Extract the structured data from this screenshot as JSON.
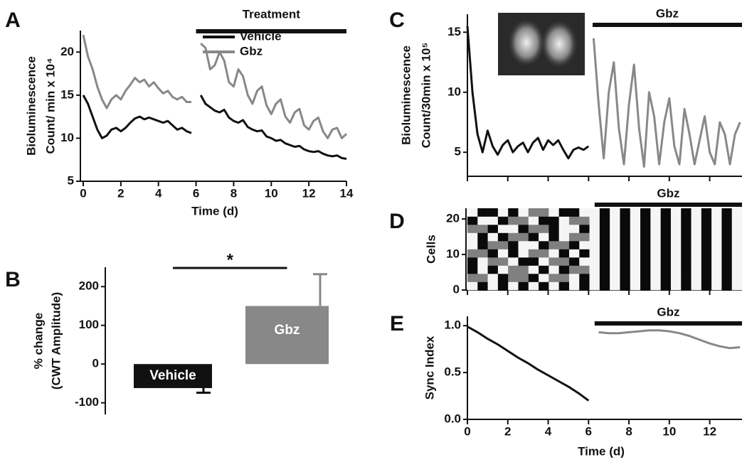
{
  "chart_data": [
    {
      "type": "line",
      "panel": "A",
      "ylabel": [
        "Bioluminescence",
        "Count/ min x 10⁴"
      ],
      "xlabel": "Time (d)",
      "x": [
        0,
        0.25,
        0.5,
        0.75,
        1,
        1.25,
        1.5,
        1.75,
        2,
        2.25,
        2.5,
        2.75,
        3,
        3.25,
        3.5,
        3.75,
        4,
        4.25,
        4.5,
        4.75,
        5,
        5.25,
        5.5,
        5.75,
        6,
        6.25,
        6.5,
        6.75,
        7,
        7.25,
        7.5,
        7.75,
        8,
        8.25,
        8.5,
        8.75,
        9,
        9.25,
        9.5,
        9.75,
        10,
        10.25,
        10.5,
        10.75,
        11,
        11.25,
        11.5,
        11.75,
        12,
        12.25,
        12.5,
        12.75,
        13,
        13.25,
        13.5,
        13.75,
        14
      ],
      "series": [
        {
          "name": "Vehicle",
          "color": "#111111",
          "values": [
            15,
            14,
            12.5,
            11,
            10,
            10.3,
            11,
            11.2,
            10.8,
            11.2,
            11.8,
            12.3,
            12.5,
            12.2,
            12.4,
            12.2,
            12,
            11.8,
            12,
            11.5,
            11,
            11.2,
            10.8,
            10.6,
            null,
            15,
            14,
            13.6,
            13.2,
            13,
            13.3,
            12.4,
            12,
            11.8,
            12.1,
            11.3,
            11,
            10.8,
            10.9,
            10.2,
            10,
            9.7,
            9.8,
            9.4,
            9.2,
            9,
            9.1,
            8.7,
            8.5,
            8.4,
            8.5,
            8.2,
            8,
            7.9,
            8,
            7.7,
            7.6
          ]
        },
        {
          "name": "Gbz",
          "color": "#888888",
          "values": [
            22,
            19.5,
            18,
            16,
            14.5,
            13.5,
            14.5,
            15,
            14.5,
            15.5,
            16.2,
            17,
            16.5,
            16.8,
            16,
            16.5,
            15.8,
            15.2,
            15.5,
            14.8,
            14.5,
            14.8,
            14.2,
            14.2,
            null,
            21,
            20.5,
            18,
            18.5,
            20,
            19,
            16.5,
            16,
            18,
            17.2,
            15,
            14,
            15.5,
            16,
            13.8,
            12.8,
            14,
            14.5,
            12.5,
            11.8,
            13,
            13.4,
            11.5,
            11,
            12,
            12.4,
            10.8,
            10,
            11,
            11.2,
            10,
            10.5
          ]
        }
      ],
      "xlim": [
        0,
        14
      ],
      "xticks": [
        0,
        2,
        4,
        6,
        8,
        10,
        12,
        14
      ],
      "ylim": [
        5,
        22.5
      ],
      "yticks": [
        5,
        10,
        15,
        20
      ],
      "annotations": [
        {
          "text": "Treatment",
          "span": [
            6,
            14
          ]
        }
      ]
    },
    {
      "type": "bar",
      "panel": "B",
      "ylabel": [
        "% change",
        "(CWT Amplitude)"
      ],
      "categories": [
        "Vehicle",
        "Gbz"
      ],
      "values": [
        -62,
        150
      ],
      "errors": [
        12,
        82
      ],
      "colors": [
        "#111111",
        "#888888"
      ],
      "ylim": [
        -130,
        250
      ],
      "yticks": [
        -100,
        0,
        100,
        200
      ],
      "significance": "*"
    },
    {
      "type": "line",
      "panel": "C",
      "ylabel": [
        "Bioluminescence",
        "Count/30min x 10⁵"
      ],
      "x": [
        0,
        0.25,
        0.5,
        0.75,
        1,
        1.25,
        1.5,
        1.75,
        2,
        2.25,
        2.5,
        2.75,
        3,
        3.25,
        3.5,
        3.75,
        4,
        4.25,
        4.5,
        4.75,
        5,
        5.25,
        5.5,
        5.75,
        6,
        6.25,
        6.5,
        6.75,
        7,
        7.25,
        7.5,
        7.75,
        8,
        8.25,
        8.5,
        8.75,
        9,
        9.25,
        9.5,
        9.75,
        10,
        10.25,
        10.5,
        10.75,
        11,
        11.25,
        11.5,
        11.75,
        12,
        12.25,
        12.5,
        12.75,
        13,
        13.25,
        13.5
      ],
      "series": [
        {
          "color": "#111111",
          "values": [
            15.5,
            10,
            6.5,
            5,
            6.8,
            5.5,
            4.8,
            5.6,
            6,
            5,
            5.5,
            5.8,
            5,
            5.8,
            6.2,
            5.2,
            6,
            5.6,
            6,
            5.2,
            4.5,
            5.2,
            5.4,
            5.2,
            5.5,
            null,
            null,
            null,
            null,
            null,
            null,
            null,
            null,
            null,
            null,
            null,
            null,
            null,
            null,
            null,
            null,
            null,
            null,
            null,
            null,
            null,
            null,
            null,
            null,
            null,
            null,
            null,
            null,
            null,
            null
          ]
        },
        {
          "color": "#888888",
          "values": [
            null,
            null,
            null,
            null,
            null,
            null,
            null,
            null,
            null,
            null,
            null,
            null,
            null,
            null,
            null,
            null,
            null,
            null,
            null,
            null,
            null,
            null,
            null,
            null,
            null,
            14.5,
            9,
            4.5,
            10,
            12.5,
            7,
            4,
            9,
            12.3,
            7,
            3.8,
            10,
            8,
            4,
            7.5,
            9.5,
            5.5,
            4,
            8.6,
            6.5,
            4,
            6,
            8,
            5,
            4,
            7.5,
            6.5,
            4,
            6.5,
            7.5
          ]
        }
      ],
      "xlim": [
        0,
        13.6
      ],
      "ylim": [
        3,
        16.5
      ],
      "yticks": [
        5,
        10,
        15
      ],
      "annotations": [
        {
          "text": "Gbz",
          "span": [
            6.2,
            13.6
          ]
        }
      ]
    },
    {
      "type": "heatmap",
      "panel": "D",
      "ylabel": "Cells",
      "z": [
        [
          1,
          0,
          1,
          0,
          1,
          0,
          1,
          0,
          1,
          0,
          1,
          0,
          1,
          0,
          1,
          0,
          1,
          0,
          1,
          0,
          1,
          0,
          1,
          0,
          1,
          0,
          1
        ],
        [
          0.5,
          0.5,
          1,
          0,
          0.5,
          0.5,
          0,
          1,
          0.5,
          0.5,
          1,
          0,
          1,
          0,
          1,
          0,
          1,
          0,
          1,
          0,
          1,
          0,
          1,
          0,
          1,
          0,
          1
        ],
        [
          0,
          1,
          0,
          1,
          0.5,
          0.5,
          1,
          0,
          1,
          0,
          0.5,
          0.5,
          1,
          0,
          1,
          0,
          1,
          0,
          1,
          0,
          1,
          0,
          1,
          0,
          1,
          0,
          1
        ],
        [
          0,
          1,
          0.5,
          0.5,
          1,
          0,
          0,
          1,
          0.5,
          0.5,
          0,
          1,
          1,
          0,
          1,
          0,
          1,
          0,
          1,
          0,
          1,
          0,
          1,
          0,
          1,
          0,
          1
        ],
        [
          0.5,
          0.5,
          0,
          1,
          0,
          1,
          0.5,
          0.5,
          1,
          0,
          1,
          0,
          1,
          0,
          1,
          0,
          1,
          0,
          1,
          0,
          1,
          0,
          1,
          0,
          1,
          0,
          1
        ],
        [
          1,
          0,
          0.5,
          0.5,
          0,
          1,
          1,
          0,
          0.5,
          0.5,
          0,
          1,
          1,
          0,
          1,
          0,
          1,
          0,
          1,
          0,
          1,
          0,
          1,
          0,
          1,
          0,
          1
        ],
        [
          1,
          0,
          1,
          0,
          0.5,
          0.5,
          0,
          1,
          0,
          1,
          0.5,
          0.5,
          1,
          0,
          1,
          0,
          1,
          0,
          1,
          0,
          1,
          0,
          1,
          0,
          1,
          0,
          1
        ],
        [
          0.5,
          0.5,
          0,
          1,
          1,
          0,
          0.5,
          0.5,
          0,
          1,
          1,
          0,
          1,
          0,
          1,
          0,
          1,
          0,
          1,
          0,
          1,
          0,
          1,
          0,
          1,
          0,
          1
        ],
        [
          0,
          1,
          1,
          0,
          0.5,
          0.5,
          1,
          0,
          0,
          1,
          0.5,
          0.5,
          1,
          0,
          1,
          0,
          1,
          0,
          1,
          0,
          1,
          0,
          1,
          0,
          1,
          0,
          1
        ],
        [
          1,
          0,
          0,
          1,
          0,
          1,
          0.5,
          0.5,
          1,
          0,
          0,
          1,
          1,
          0,
          1,
          0,
          1,
          0,
          1,
          0,
          1,
          0,
          1,
          0,
          1,
          0,
          1
        ]
      ],
      "xlim": [
        0,
        13.6
      ],
      "ylim": [
        0,
        23
      ],
      "yticks": [
        0,
        10,
        20
      ],
      "annotations": [
        {
          "text": "Gbz",
          "span": [
            6.3,
            13.6
          ]
        }
      ]
    },
    {
      "type": "line",
      "panel": "E",
      "ylabel": "Sync Index",
      "xlabel": "Time (d)",
      "x": [
        0,
        0.5,
        1,
        1.5,
        2,
        2.5,
        3,
        3.5,
        4,
        4.5,
        5,
        5.5,
        6,
        6.5,
        7,
        7.5,
        8,
        8.5,
        9,
        9.5,
        10,
        10.5,
        11,
        11.5,
        12,
        12.5,
        13,
        13.5
      ],
      "series": [
        {
          "color": "#111111",
          "values": [
            0.99,
            0.93,
            0.86,
            0.8,
            0.73,
            0.66,
            0.6,
            0.53,
            0.47,
            0.41,
            0.35,
            0.28,
            0.2,
            null,
            null,
            null,
            null,
            null,
            null,
            null,
            null,
            null,
            null,
            null,
            null,
            null,
            null,
            null
          ]
        },
        {
          "color": "#888888",
          "values": [
            null,
            null,
            null,
            null,
            null,
            null,
            null,
            null,
            null,
            null,
            null,
            null,
            null,
            0.93,
            0.92,
            0.92,
            0.93,
            0.94,
            0.95,
            0.95,
            0.94,
            0.92,
            0.89,
            0.85,
            0.81,
            0.78,
            0.76,
            0.77
          ]
        }
      ],
      "xlim": [
        0,
        13.6
      ],
      "xticks": [
        0,
        2,
        4,
        6,
        8,
        10,
        12
      ],
      "ylim": [
        0,
        1.1
      ],
      "yticks": [
        {
          "value": 0,
          "label": "0.0"
        },
        {
          "value": 0.5,
          "label": "0.5"
        },
        {
          "value": 1,
          "label": "1.0"
        }
      ],
      "annotations": [
        {
          "text": "Gbz",
          "span": [
            6.3,
            13.6
          ]
        }
      ]
    }
  ]
}
